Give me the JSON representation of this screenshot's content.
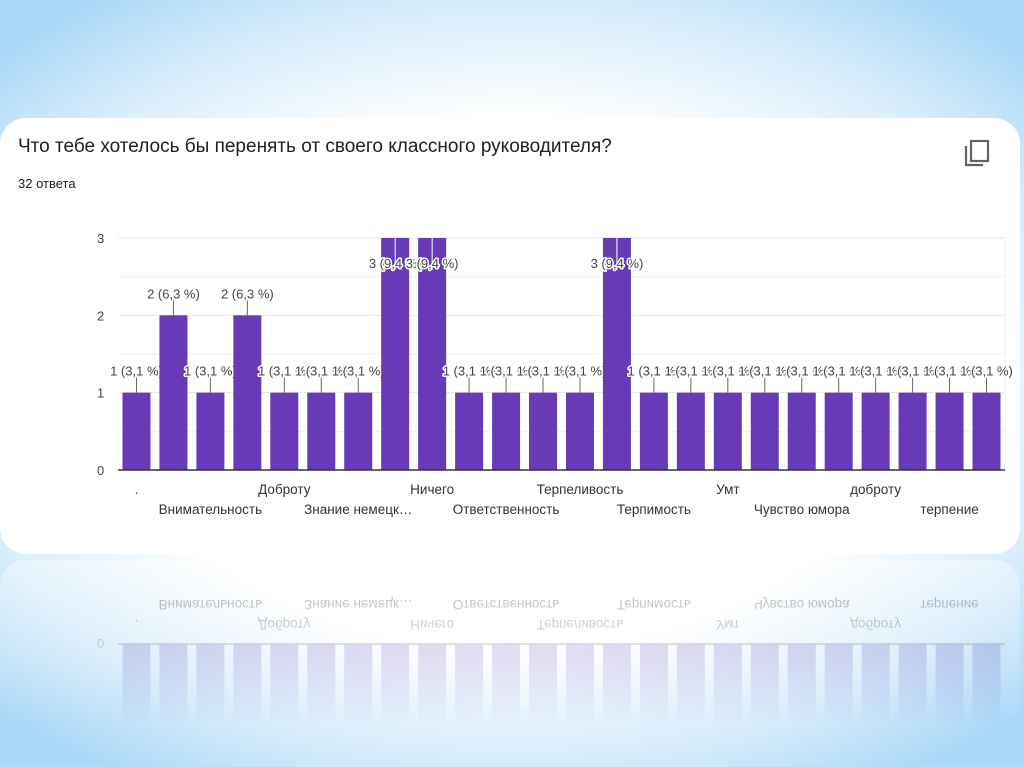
{
  "title": "Что тебе хотелось бы перенять от своего классного руководителя?",
  "responses": "32 ответа",
  "copy_icon": "copy-icon",
  "chart_data": {
    "type": "bar",
    "title": "Что тебе хотелось бы перенять от своего классного руководителя?",
    "total_responses": 32,
    "ylim": [
      0,
      3
    ],
    "yticks": [
      "0",
      "1",
      "2",
      "3"
    ],
    "grid": true,
    "bar_color": "#673ab7",
    "categories": [
      ".",
      "",
      "Внимательность",
      "",
      "Доброту",
      "",
      "Знание немецк…",
      "",
      "Ничего",
      "",
      "Ответственность",
      "",
      "Терпеливость",
      "",
      "Терпимость",
      "",
      "Умт",
      "",
      "Чувство юмора",
      "",
      "доброту",
      "",
      "терпение",
      ""
    ],
    "values": [
      1,
      2,
      1,
      2,
      1,
      1,
      1,
      3,
      3,
      1,
      1,
      1,
      1,
      3,
      1,
      1,
      1,
      1,
      1,
      1,
      1,
      1,
      1,
      1
    ],
    "data_labels": [
      "1 (3,1 %)",
      "2 (6,3 %)",
      "1 (3,1 %)",
      "2 (6,3 %)",
      "1 (3,1 %)",
      "1 (3,1 %)",
      "1 (3,1 %)",
      "3 (9,4 %)",
      "3 (9,4 %)",
      "1 (3,1 %)",
      "1 (3,1 %)",
      "1 (3,1 %)",
      "1 (3,1 %)",
      "3 (9,4 %)",
      "1 (3,1 %)",
      "1 (3,1 %)",
      "1 (3,1 %)",
      "1 (3,1 %)",
      "1 (3,1 %)",
      "1 (3,1 %)",
      "1 (3,1 %)",
      "1 (3,1 %)",
      "1 (3,1 %)",
      "1 (3,1 %)"
    ]
  }
}
